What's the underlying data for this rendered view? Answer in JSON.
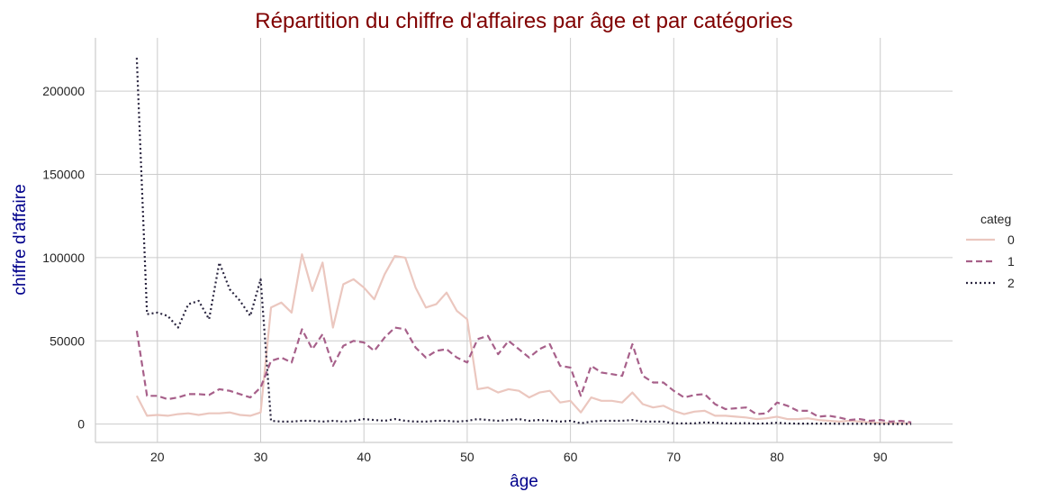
{
  "chart_data": {
    "type": "line",
    "title": "Répartition du chiffre d'affaires par âge et par catégories",
    "xlabel": "âge",
    "ylabel": "chiffre d'affaire",
    "xlim": [
      14,
      97
    ],
    "ylim": [
      -11000,
      232000
    ],
    "xticks": [
      20,
      30,
      40,
      50,
      60,
      70,
      80,
      90
    ],
    "yticks": [
      0,
      50000,
      100000,
      150000,
      200000
    ],
    "ytick_labels": [
      "0",
      "50000",
      "100000",
      "150000",
      "200000"
    ],
    "grid": true,
    "legend": {
      "title": "categ",
      "placement": "right"
    },
    "x": [
      18,
      19,
      20,
      21,
      22,
      23,
      24,
      25,
      26,
      27,
      28,
      29,
      30,
      31,
      32,
      33,
      34,
      35,
      36,
      37,
      38,
      39,
      40,
      41,
      42,
      43,
      44,
      45,
      46,
      47,
      48,
      49,
      50,
      51,
      52,
      53,
      54,
      55,
      56,
      57,
      58,
      59,
      60,
      61,
      62,
      63,
      64,
      65,
      66,
      67,
      68,
      69,
      70,
      71,
      72,
      73,
      74,
      75,
      76,
      77,
      78,
      79,
      80,
      81,
      82,
      83,
      84,
      85,
      86,
      87,
      88,
      89,
      90,
      91,
      92,
      93
    ],
    "series": [
      {
        "name": "0",
        "color": "#ebc7bf",
        "dash": "solid",
        "values": [
          17000,
          5000,
          5500,
          5000,
          6000,
          6500,
          5500,
          6500,
          6500,
          7000,
          5500,
          5000,
          7000,
          70000,
          73000,
          67000,
          102000,
          80000,
          97000,
          58000,
          84000,
          87000,
          82000,
          75000,
          90000,
          101000,
          100000,
          82000,
          70000,
          72000,
          79000,
          68000,
          63000,
          21000,
          22000,
          19000,
          21000,
          20000,
          16000,
          19000,
          20000,
          13000,
          14000,
          7000,
          16000,
          14000,
          14000,
          13000,
          19000,
          12000,
          10000,
          11000,
          8000,
          6000,
          7500,
          8000,
          5000,
          5000,
          4500,
          4000,
          3000,
          3500,
          4500,
          3000,
          3000,
          3500,
          2500,
          2000,
          1500,
          2000,
          1500,
          1000,
          800,
          600,
          500,
          300
        ]
      },
      {
        "name": "1",
        "color": "#a7608a",
        "dash": "dashed",
        "values": [
          56000,
          17000,
          17000,
          15000,
          16000,
          18000,
          18000,
          17500,
          21000,
          20000,
          18000,
          16000,
          22000,
          38000,
          40000,
          37000,
          57000,
          45000,
          54000,
          35000,
          47000,
          50000,
          49000,
          44000,
          52000,
          58000,
          57000,
          46000,
          40000,
          44000,
          45000,
          40000,
          37000,
          51000,
          53000,
          42000,
          50000,
          45000,
          40000,
          45000,
          48000,
          35000,
          34000,
          17000,
          35000,
          31000,
          30000,
          29000,
          48000,
          29000,
          25000,
          25000,
          20000,
          16000,
          17500,
          18000,
          12000,
          9000,
          9500,
          10000,
          6000,
          6500,
          13000,
          11000,
          8000,
          8000,
          4500,
          5000,
          4000,
          2500,
          3000,
          2000,
          2500,
          1500,
          2000,
          1000
        ]
      },
      {
        "name": "2",
        "color": "#2b2640",
        "dash": "dotted",
        "values": [
          220000,
          66000,
          67000,
          65000,
          58000,
          72000,
          74000,
          63000,
          97000,
          81000,
          74000,
          65000,
          87000,
          2000,
          1500,
          1500,
          2000,
          2000,
          1500,
          2000,
          1500,
          2000,
          3000,
          2500,
          2000,
          3000,
          2000,
          1500,
          1500,
          2000,
          2000,
          1500,
          2000,
          3000,
          2500,
          2000,
          2500,
          3000,
          2000,
          2500,
          2000,
          1500,
          2000,
          500,
          1500,
          2000,
          2000,
          2000,
          2500,
          1500,
          1500,
          1500,
          500,
          500,
          500,
          1000,
          800,
          500,
          500,
          600,
          300,
          400,
          800,
          400,
          300,
          300,
          300,
          300,
          200,
          200,
          200,
          200,
          100,
          100,
          100,
          100
        ]
      }
    ]
  }
}
